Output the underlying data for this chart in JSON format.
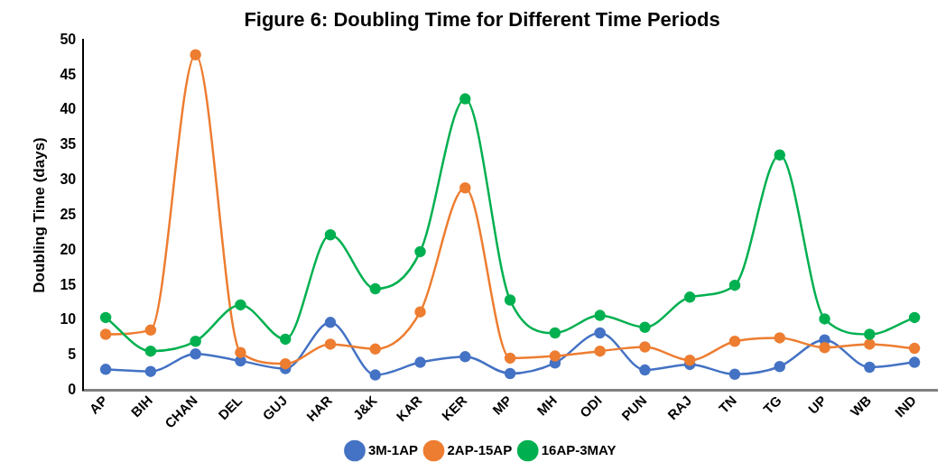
{
  "chart_data": {
    "type": "line",
    "title": "Figure 6: Doubling Time for Different Time Periods",
    "ylabel": "Doubling Time (days)",
    "categories": [
      "AP",
      "BIH",
      "CHAN",
      "DEL",
      "GUJ",
      "HAR",
      "J&K",
      "KAR",
      "KER",
      "MP",
      "MH",
      "ODI",
      "PUN",
      "RAJ",
      "TN",
      "TG",
      "UP",
      "WB",
      "IND"
    ],
    "series": [
      {
        "name": "3M-1AP",
        "color": "#4472c4",
        "values": [
          3.0,
          2.7,
          5.2,
          4.2,
          3.1,
          9.7,
          2.2,
          4.0,
          4.8,
          2.4,
          3.9,
          8.2,
          2.9,
          3.7,
          2.3,
          3.4,
          7.2,
          3.3,
          4.0
        ]
      },
      {
        "name": "2AP-15AP",
        "color": "#ed7d31",
        "values": [
          8.0,
          8.6,
          47.9,
          5.4,
          3.8,
          6.6,
          5.9,
          11.2,
          28.9,
          4.6,
          4.9,
          5.6,
          6.2,
          4.3,
          7.0,
          7.5,
          6.1,
          6.6,
          6.0
        ]
      },
      {
        "name": "16AP-3MAY",
        "color": "#00b050",
        "values": [
          10.4,
          5.6,
          7.0,
          12.2,
          7.3,
          22.2,
          14.5,
          19.8,
          41.6,
          12.9,
          8.2,
          10.7,
          9.0,
          13.3,
          15.0,
          33.6,
          10.2,
          8.0,
          10.4
        ]
      }
    ],
    "ylim": [
      0,
      50
    ],
    "yticks": [
      0,
      5,
      10,
      15,
      20,
      25,
      30,
      35,
      40,
      45,
      50
    ],
    "grid": false,
    "legend": "bottom",
    "marker": "circle",
    "line_style": "solid"
  }
}
